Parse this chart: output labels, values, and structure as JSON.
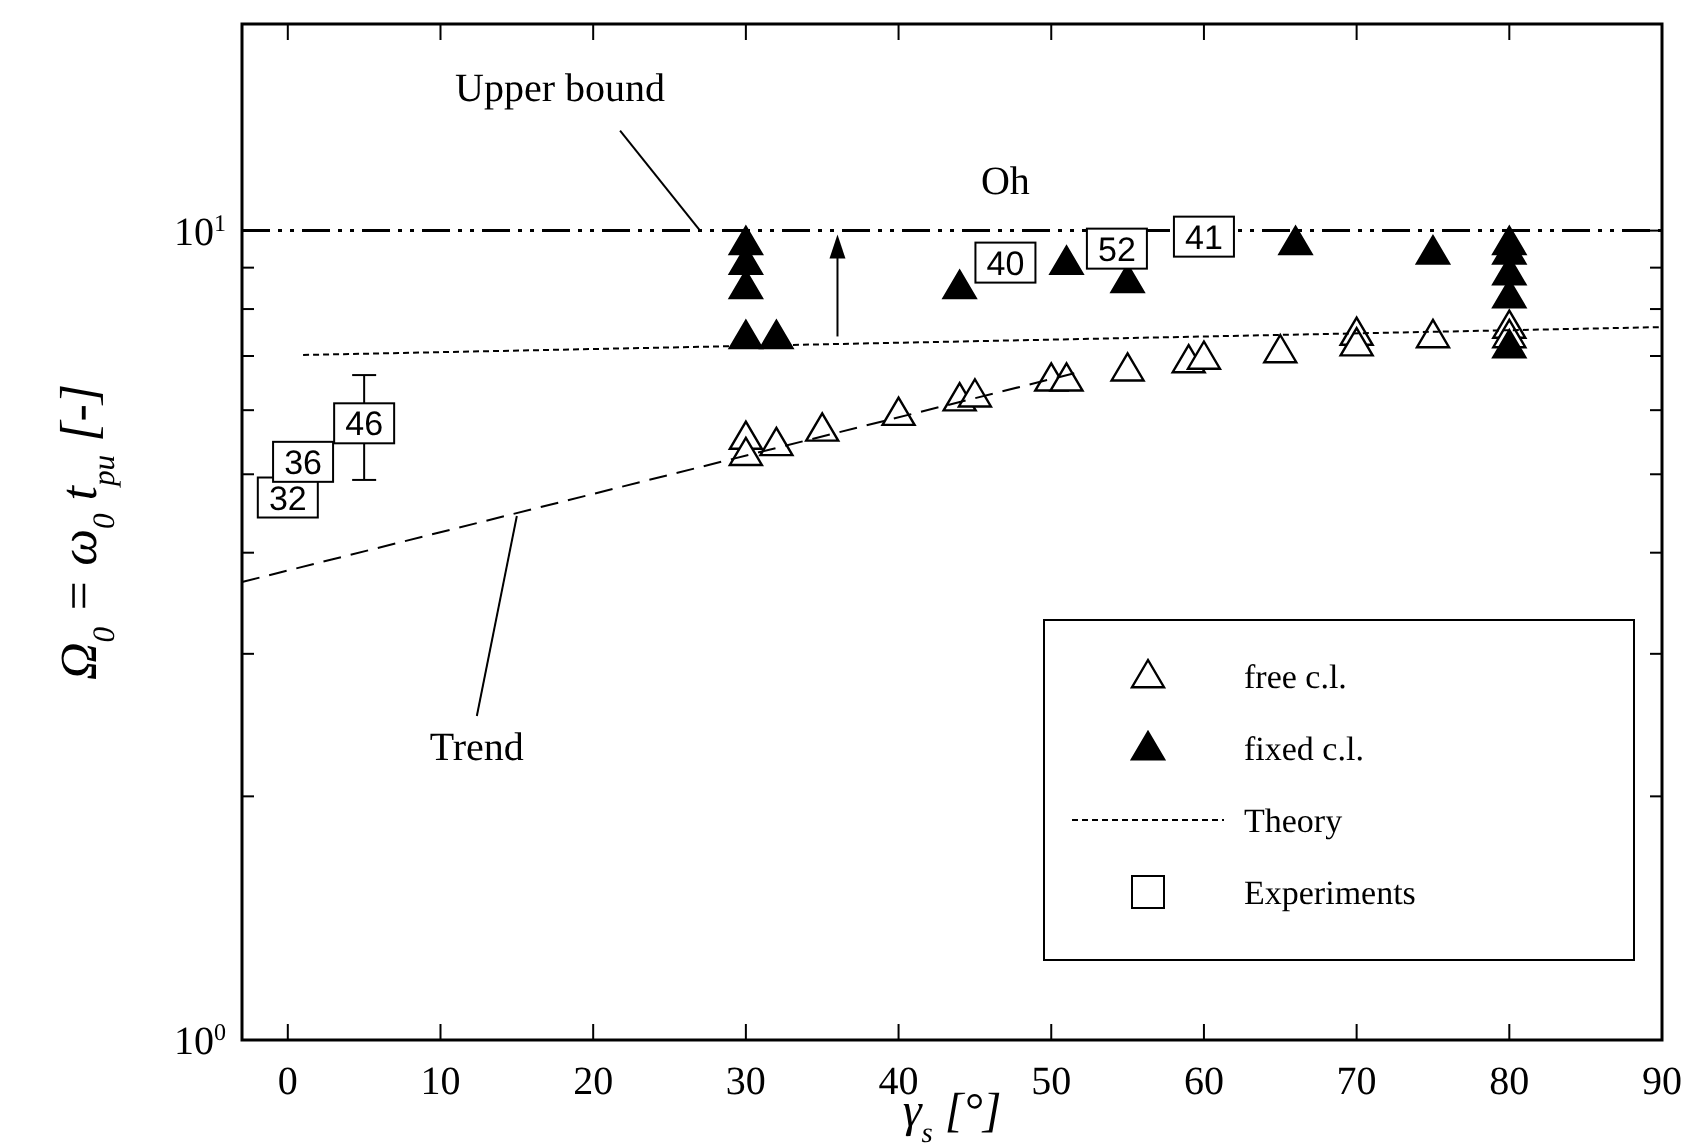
{
  "chart_data": {
    "type": "scatter",
    "xlabel": "γ$_{s}$  [°]",
    "ylabel": "Ω$_{0}$ = ω$_{0}$ t$_{pu}$ [-]",
    "xlim": [
      -3,
      90
    ],
    "xticks": [
      0,
      10,
      20,
      30,
      40,
      50,
      60,
      70,
      80,
      90
    ],
    "ylim": [
      1,
      18
    ],
    "yticks": [
      {
        "value": 1,
        "label": "10$^{0}$"
      },
      {
        "value": 2,
        "label": null
      },
      {
        "value": 3,
        "label": null
      },
      {
        "value": 4,
        "label": null
      },
      {
        "value": 5,
        "label": null
      },
      {
        "value": 6,
        "label": null
      },
      {
        "value": 7,
        "label": null
      },
      {
        "value": 8,
        "label": null
      },
      {
        "value": 9,
        "label": null
      },
      {
        "value": 10,
        "label": "10$^{1}$"
      }
    ],
    "log": "y",
    "grid": false,
    "legend": "bottom right",
    "series": [
      {
        "name": "free c.l.",
        "marker": "triangle",
        "color": "#ffffff",
        "x": [
          30,
          30,
          32,
          35,
          40,
          44,
          45,
          50,
          51,
          55,
          59,
          60,
          65,
          70,
          70,
          75,
          80,
          80
        ],
        "values": [
          5.55,
          5.3,
          5.45,
          5.68,
          5.94,
          6.19,
          6.26,
          6.55,
          6.55,
          6.74,
          6.9,
          6.97,
          7.1,
          7.46,
          7.24,
          7.41,
          7.61,
          7.41
        ]
      },
      {
        "name": "fixed c.l.",
        "marker": "triangle",
        "color": "#000000",
        "x": [
          30,
          30,
          30,
          30,
          32,
          44,
          51,
          55,
          66,
          75,
          80,
          80,
          80,
          80,
          80
        ],
        "values": [
          9.66,
          9.13,
          8.52,
          7.39,
          7.39,
          8.52,
          9.13,
          8.67,
          9.66,
          9.4,
          9.66,
          9.4,
          8.86,
          8.3,
          7.2
        ]
      },
      {
        "name": "Theory",
        "type": "line",
        "line_style": "dotted",
        "color": "#000000",
        "x": [
          1,
          90
        ],
        "values": [
          7.02,
          7.6
        ]
      },
      {
        "name": "Experiments",
        "marker": "square",
        "color": "#000000",
        "x": [
          0,
          1,
          5,
          47,
          54.3,
          60
        ],
        "values": [
          4.68,
          5.18,
          5.78,
          9.13,
          9.5,
          9.83
        ],
        "errors": [
          null,
          null,
          [
            4.92,
            6.63
          ],
          null,
          null,
          null
        ]
      },
      {
        "type": "line",
        "line_style": "dashed",
        "color": "#000000",
        "x": [
          -3,
          52
        ],
        "values": [
          3.68,
          6.7
        ]
      }
    ],
    "ref_lines": [
      {
        "axis": "y",
        "value": 10,
        "label": "Upper bound",
        "line_style": "dashed",
        "color": "#000000"
      }
    ],
    "annotations": [
      "Oh",
      {
        "text": "Trend",
        "x": 15,
        "y": 4.44
      },
      {
        "text": "32",
        "x": 0,
        "y": 4.68
      },
      {
        "text": "36",
        "x": 1,
        "y": 5.18
      },
      {
        "text": "46",
        "x": 5,
        "y": 5.78
      },
      {
        "text": "40",
        "x": 47,
        "y": 9.13
      },
      {
        "text": "52",
        "x": 54.3,
        "y": 9.5
      },
      {
        "text": "41",
        "x": 60,
        "y": 9.83
      }
    ]
  }
}
